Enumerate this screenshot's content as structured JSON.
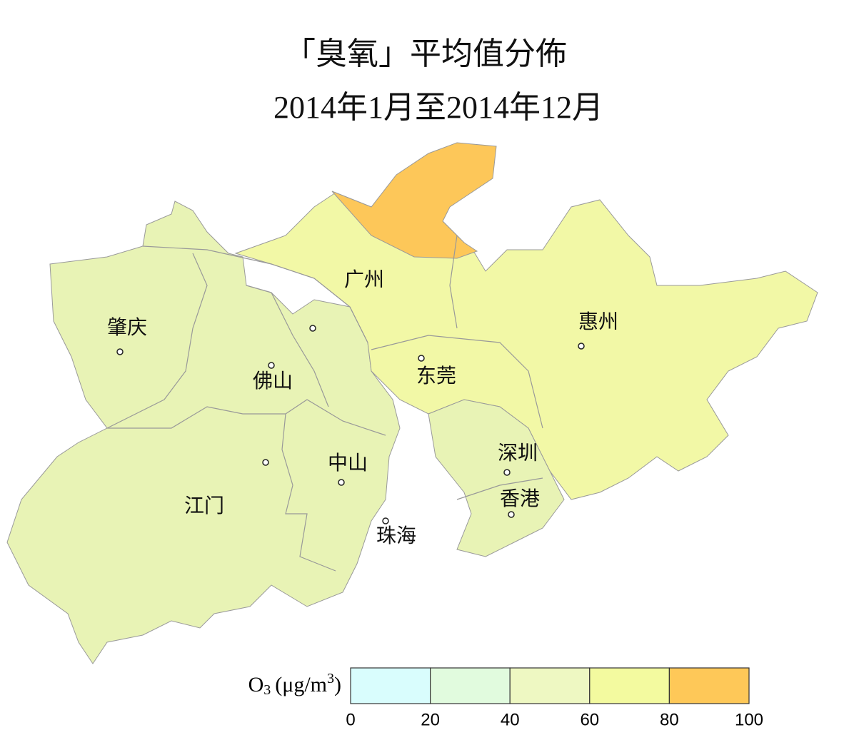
{
  "title": "「臭氧」平均值分佈",
  "subtitle": "2014年1月至2014年12月",
  "cities": [
    "肇庆",
    "广州",
    "惠州",
    "佛山",
    "东莞",
    "中山",
    "深圳",
    "香港",
    "江门",
    "珠海"
  ],
  "legend": {
    "title": {
      "base": "O",
      "sub": "3",
      "unit": "(μg/m",
      "sup": "3",
      "close": ")"
    },
    "ticks": [
      0,
      20,
      40,
      60,
      80,
      100
    ],
    "colors": [
      "#d9fdfd",
      "#e1fbde",
      "#eef8c2",
      "#f3fa9f",
      "#fec858"
    ]
  }
}
